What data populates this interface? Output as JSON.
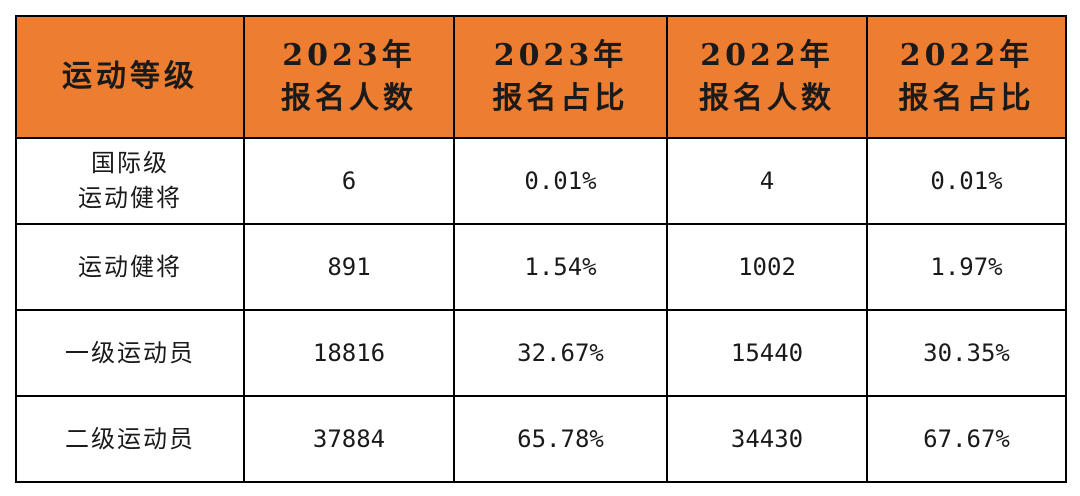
{
  "table": {
    "headers": [
      [
        "运动等级"
      ],
      [
        "2023年",
        "报名人数"
      ],
      [
        "2023年",
        "报名占比"
      ],
      [
        "2022年",
        "报名人数"
      ],
      [
        "2022年",
        "报名占比"
      ]
    ],
    "rows": [
      {
        "level": [
          "国际级",
          "运动健将"
        ],
        "count_2023": "6",
        "ratio_2023": "0.01%",
        "count_2022": "4",
        "ratio_2022": "0.01%"
      },
      {
        "level": [
          "运动健将"
        ],
        "count_2023": "891",
        "ratio_2023": "1.54%",
        "count_2022": "1002",
        "ratio_2022": "1.97%"
      },
      {
        "level": [
          "一级运动员"
        ],
        "count_2023": "18816",
        "ratio_2023": "32.67%",
        "count_2022": "15440",
        "ratio_2022": "30.35%"
      },
      {
        "level": [
          "二级运动员"
        ],
        "count_2023": "37884",
        "ratio_2023": "65.78%",
        "count_2022": "34430",
        "ratio_2022": "67.67%"
      }
    ]
  },
  "colors": {
    "header_background": "#ED7D31",
    "border": "#000000"
  }
}
